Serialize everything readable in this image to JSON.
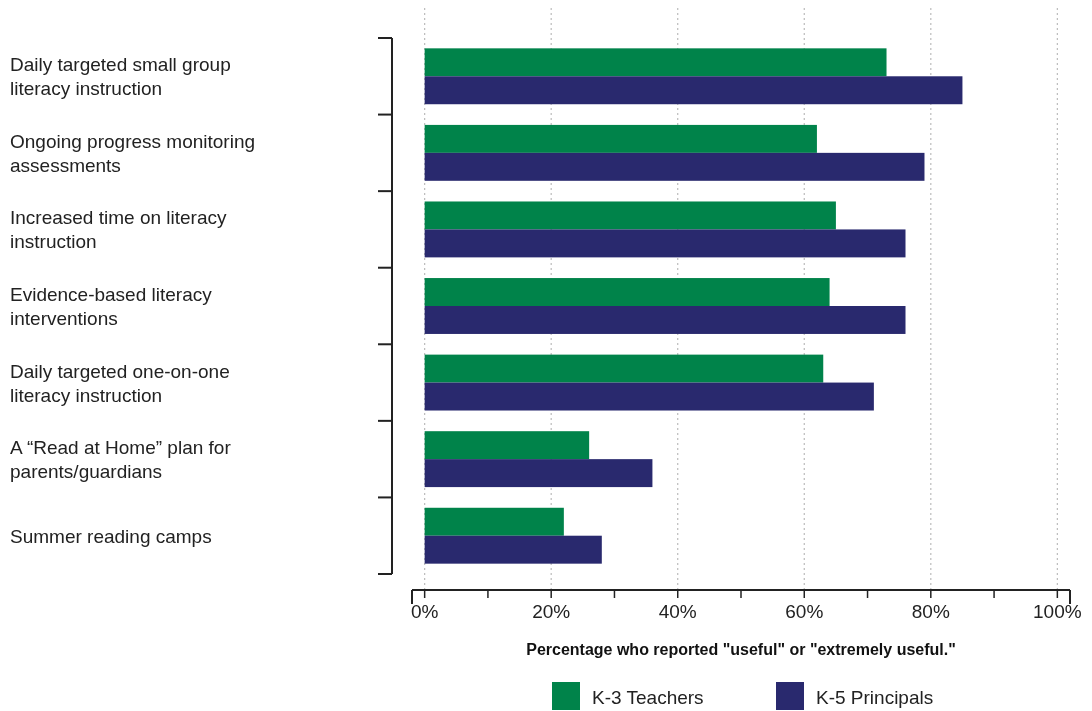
{
  "chart_data": {
    "type": "bar",
    "orientation": "horizontal",
    "xlabel": "Percentage who reported \"useful\" or \"extremely useful.\"",
    "categories": [
      "Daily targeted small group literacy instruction",
      "Ongoing progress monitoring assessments",
      "Increased time on literacy instruction",
      "Evidence-based literacy interventions",
      "Daily targeted one-on-one literacy instruction",
      "A “Read at Home” plan for parents/guardians",
      "Summer reading camps"
    ],
    "series": [
      {
        "name": "K-3 Teachers",
        "color": "#00834a",
        "values": [
          73,
          62,
          65,
          64,
          63,
          26,
          22
        ]
      },
      {
        "name": "K-5 Principals",
        "color": "#29296e",
        "values": [
          85,
          79,
          76,
          76,
          71,
          36,
          28
        ]
      }
    ],
    "xlim": [
      -2,
      102
    ],
    "xticks": [
      {
        "value": 0,
        "label": "0%"
      },
      {
        "value": 10,
        "label": null
      },
      {
        "value": 20,
        "label": "20%"
      },
      {
        "value": 30,
        "label": null
      },
      {
        "value": 40,
        "label": "40%"
      },
      {
        "value": 50,
        "label": null
      },
      {
        "value": 60,
        "label": "60%"
      },
      {
        "value": 70,
        "label": null
      },
      {
        "value": 80,
        "label": "80%"
      },
      {
        "value": 90,
        "label": null
      },
      {
        "value": 100,
        "label": "100%"
      }
    ],
    "grid": "x",
    "legend": "bottom"
  }
}
